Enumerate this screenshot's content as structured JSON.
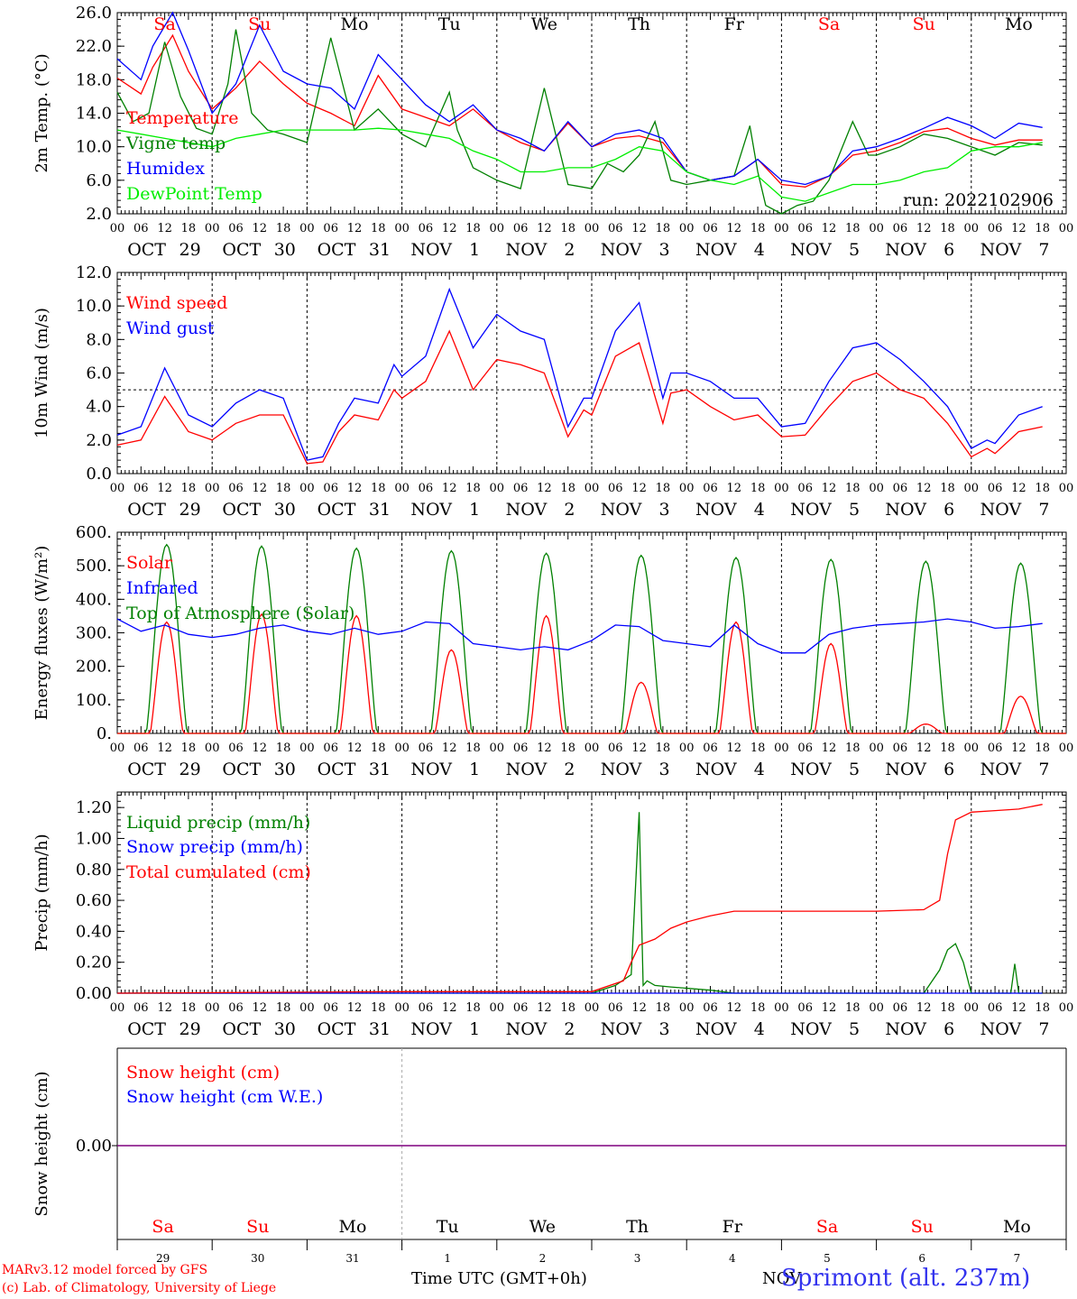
{
  "footer": {
    "model_line1": "MARv3.12 model forced by GFS",
    "model_line2": "(c) Lab. of Climatology, University of Liege",
    "time_axis": "Time UTC (GMT+0h)",
    "month": "NOV",
    "station": "Sprimont (alt. 237m)"
  },
  "colors": {
    "red": "#ff0000",
    "green": "#008000",
    "blue": "#0000ff",
    "lightgreen": "#00ee00",
    "purple": "#7f007f",
    "weekend": "#ff0000",
    "station": "#3333ee"
  },
  "days": {
    "weekday_labels": [
      "Sa",
      "Su",
      "Mo",
      "Tu",
      "We",
      "Th",
      "Fr",
      "Sa",
      "Su",
      "Mo"
    ],
    "weekend_flags": [
      true,
      true,
      false,
      false,
      false,
      false,
      false,
      true,
      true,
      false
    ],
    "date_labels": [
      [
        "OCT",
        "29"
      ],
      [
        "OCT",
        "30"
      ],
      [
        "OCT",
        "31"
      ],
      [
        "NOV",
        "1"
      ],
      [
        "NOV",
        "2"
      ],
      [
        "NOV",
        "3"
      ],
      [
        "NOV",
        "4"
      ],
      [
        "NOV",
        "5"
      ],
      [
        "NOV",
        "6"
      ],
      [
        "NOV",
        "7"
      ]
    ],
    "day_numbers": [
      "29",
      "30",
      "31",
      "1",
      "2",
      "3",
      "4",
      "5",
      "6",
      "7"
    ],
    "hour_labels": [
      "00",
      "06",
      "12",
      "18"
    ],
    "final_hour_label": "00"
  },
  "chart_data": [
    {
      "type": "line",
      "ylabel": "2m Temp. (°C)",
      "ylim": [
        2,
        26
      ],
      "yticks": [
        "2.0",
        "6.0",
        "10.0",
        "14.0",
        "18.0",
        "22.0",
        "26.0"
      ],
      "x_unit": "hours since 29 Oct 00 UTC",
      "annotation": "run: 2022102906",
      "legend": [
        "Temperature",
        "Vigne temp",
        "Humidex",
        "DewPoint Temp"
      ],
      "series": [
        {
          "name": "Temperature",
          "color": "red",
          "x": [
            0,
            6,
            9,
            14,
            18,
            24,
            30,
            36,
            42,
            48,
            54,
            60,
            66,
            72,
            78,
            84,
            90,
            96,
            102,
            108,
            114,
            120,
            126,
            132,
            138,
            144,
            150,
            156,
            162,
            168,
            174,
            180,
            186,
            192,
            198,
            204,
            210,
            216,
            222,
            228,
            234
          ],
          "values": [
            18.2,
            16.3,
            19.5,
            23.3,
            19.0,
            14.5,
            17.0,
            20.2,
            17.5,
            15.2,
            14.0,
            12.5,
            18.5,
            14.5,
            13.5,
            12.5,
            14.5,
            12.0,
            10.5,
            9.5,
            12.8,
            10.0,
            11.0,
            11.3,
            10.5,
            7.0,
            6.0,
            6.5,
            8.5,
            5.5,
            5.2,
            6.5,
            9.0,
            9.5,
            10.5,
            11.8,
            12.2,
            11.0,
            10.2,
            10.8,
            10.8
          ]
        },
        {
          "name": "Vigne temp",
          "color": "green",
          "x": [
            0,
            4,
            8,
            12,
            16,
            20,
            24,
            28,
            30,
            34,
            38,
            42,
            48,
            54,
            60,
            66,
            72,
            78,
            84,
            86,
            90,
            96,
            102,
            108,
            114,
            120,
            124,
            128,
            132,
            136,
            140,
            144,
            150,
            156,
            160,
            162,
            164,
            168,
            172,
            176,
            180,
            186,
            190,
            192,
            198,
            204,
            210,
            216,
            222,
            228,
            234
          ],
          "values": [
            16.5,
            13.0,
            14.0,
            22.5,
            16.0,
            12.2,
            11.5,
            17.5,
            24.0,
            14.0,
            12.0,
            11.5,
            10.5,
            23.0,
            12.0,
            14.5,
            11.5,
            10.0,
            16.5,
            12.0,
            7.5,
            6.0,
            5.0,
            17.0,
            5.5,
            5.0,
            8.0,
            7.0,
            9.0,
            13.0,
            6.0,
            5.5,
            6.0,
            6.5,
            12.5,
            7.0,
            3.0,
            2.0,
            3.0,
            3.5,
            6.0,
            13.0,
            9.0,
            9.0,
            10.0,
            11.5,
            11.0,
            10.0,
            9.0,
            10.5,
            10.2
          ]
        },
        {
          "name": "Humidex",
          "color": "blue",
          "x": [
            0,
            6,
            9,
            14,
            18,
            24,
            30,
            36,
            42,
            48,
            54,
            60,
            66,
            72,
            78,
            84,
            90,
            96,
            102,
            108,
            114,
            120,
            126,
            132,
            138,
            144,
            150,
            156,
            162,
            168,
            174,
            180,
            186,
            192,
            198,
            204,
            210,
            216,
            222,
            228,
            234
          ],
          "values": [
            20.5,
            18.0,
            22.0,
            26.0,
            21.5,
            14.0,
            17.5,
            24.5,
            19.0,
            17.5,
            17.0,
            14.5,
            21.0,
            18.0,
            15.0,
            13.0,
            15.0,
            12.0,
            11.0,
            9.5,
            13.0,
            10.0,
            11.5,
            12.0,
            11.0,
            7.0,
            6.0,
            6.5,
            8.5,
            6.0,
            5.5,
            6.5,
            9.5,
            10.0,
            11.0,
            12.2,
            13.5,
            12.5,
            11.0,
            12.8,
            12.3
          ]
        },
        {
          "name": "DewPoint Temp",
          "color": "lightgreen",
          "x": [
            0,
            6,
            12,
            18,
            24,
            30,
            36,
            42,
            48,
            54,
            60,
            66,
            72,
            78,
            84,
            90,
            96,
            102,
            108,
            114,
            120,
            126,
            132,
            138,
            144,
            150,
            156,
            162,
            168,
            174,
            180,
            186,
            192,
            198,
            204,
            210,
            216,
            222,
            228,
            234
          ],
          "values": [
            12.0,
            11.5,
            11.0,
            10.5,
            10.0,
            11.0,
            11.5,
            12.0,
            12.0,
            12.0,
            12.0,
            12.2,
            12.0,
            11.5,
            11.0,
            9.5,
            8.5,
            7.0,
            7.0,
            7.5,
            7.5,
            8.5,
            10.0,
            9.5,
            7.0,
            6.0,
            5.5,
            6.5,
            4.0,
            3.5,
            4.5,
            5.5,
            5.5,
            6.0,
            7.0,
            7.5,
            9.5,
            10.0,
            10.0,
            10.5
          ]
        }
      ]
    },
    {
      "type": "line",
      "ylabel": "10m Wind (m/s)",
      "ylim": [
        0,
        12
      ],
      "yticks": [
        "0.0",
        "2.0",
        "4.0",
        "6.0",
        "8.0",
        "10.0",
        "12.0"
      ],
      "reference_line": 5.0,
      "legend": [
        "Wind speed",
        "Wind gust"
      ],
      "series": [
        {
          "name": "Wind speed",
          "color": "red",
          "x": [
            0,
            6,
            12,
            18,
            24,
            30,
            36,
            42,
            48,
            52,
            56,
            60,
            66,
            70,
            72,
            78,
            84,
            90,
            96,
            102,
            108,
            114,
            118,
            120,
            126,
            132,
            138,
            140,
            144,
            150,
            156,
            162,
            168,
            174,
            180,
            186,
            192,
            198,
            204,
            210,
            216,
            220,
            222,
            228,
            234
          ],
          "values": [
            1.7,
            2.0,
            4.6,
            2.5,
            2.0,
            3.0,
            3.5,
            3.5,
            0.6,
            0.7,
            2.5,
            3.5,
            3.2,
            5.0,
            4.5,
            5.5,
            8.5,
            5.0,
            6.8,
            6.5,
            6.0,
            2.2,
            3.8,
            3.5,
            7.0,
            7.8,
            3.0,
            4.8,
            5.0,
            4.0,
            3.2,
            3.5,
            2.2,
            2.3,
            4.0,
            5.5,
            6.0,
            5.0,
            4.5,
            3.0,
            1.0,
            1.5,
            1.2,
            2.5,
            2.8
          ]
        },
        {
          "name": "Wind gust",
          "color": "blue",
          "x": [
            0,
            6,
            12,
            18,
            24,
            30,
            36,
            42,
            48,
            52,
            56,
            60,
            66,
            70,
            72,
            78,
            84,
            90,
            96,
            102,
            108,
            114,
            118,
            120,
            126,
            132,
            138,
            140,
            144,
            150,
            156,
            162,
            168,
            174,
            180,
            186,
            192,
            198,
            204,
            210,
            216,
            220,
            222,
            228,
            234
          ],
          "values": [
            2.3,
            2.8,
            6.3,
            3.5,
            2.8,
            4.2,
            5.0,
            4.5,
            0.8,
            1.0,
            3.0,
            4.5,
            4.2,
            6.5,
            5.8,
            7.0,
            11.0,
            7.5,
            9.5,
            8.5,
            8.0,
            2.8,
            4.5,
            4.5,
            8.5,
            10.2,
            4.5,
            6.0,
            6.0,
            5.5,
            4.5,
            4.5,
            2.8,
            3.0,
            5.5,
            7.5,
            7.8,
            6.8,
            5.5,
            4.0,
            1.5,
            2.0,
            1.8,
            3.5,
            4.0
          ]
        }
      ]
    },
    {
      "type": "line",
      "ylabel": "Energy fluxes (W/m²)",
      "ylim": [
        0,
        650
      ],
      "yticks": [
        "0.",
        "100.",
        "200.",
        "300.",
        "400.",
        "500.",
        "600."
      ],
      "legend": [
        "Solar",
        "Infrared",
        "Top of Atmosphere (Solar)"
      ],
      "series": [
        {
          "name": "Solar",
          "color": "red",
          "day_peaks": [
            360,
            385,
            380,
            270,
            380,
            165,
            360,
            290,
            30,
            120
          ]
        },
        {
          "name": "Infrared",
          "color": "blue",
          "x": [
            0,
            6,
            12,
            18,
            24,
            30,
            36,
            42,
            48,
            54,
            60,
            66,
            72,
            78,
            84,
            90,
            96,
            102,
            108,
            114,
            120,
            126,
            132,
            138,
            144,
            150,
            156,
            162,
            168,
            174,
            180,
            186,
            192,
            198,
            204,
            210,
            216,
            222,
            228,
            234
          ],
          "values": [
            370,
            330,
            350,
            320,
            310,
            320,
            340,
            350,
            330,
            320,
            340,
            320,
            330,
            360,
            355,
            290,
            280,
            270,
            280,
            270,
            300,
            350,
            345,
            300,
            290,
            280,
            350,
            290,
            260,
            260,
            320,
            340,
            350,
            355,
            360,
            370,
            360,
            340,
            345,
            355
          ]
        },
        {
          "name": "Top of Atmosphere (Solar)",
          "color": "green",
          "day_peaks": [
            610,
            605,
            598,
            590,
            582,
            575,
            568,
            562,
            556,
            550
          ]
        }
      ]
    },
    {
      "type": "line",
      "ylabel": "Precip (mm/h)",
      "ylim": [
        0,
        1.3
      ],
      "yticks": [
        "0.00",
        "0.20",
        "0.40",
        "0.60",
        "0.80",
        "1.00",
        "1.20"
      ],
      "legend": [
        "Liquid precip (mm/h)",
        "Snow precip (mm/h)",
        "Total cumulated (cm)"
      ],
      "series": [
        {
          "name": "Liquid precip (mm/h)",
          "color": "green",
          "x": [
            0,
            120,
            126,
            130,
            132,
            133,
            134,
            136,
            140,
            150,
            156,
            180,
            195,
            204,
            208,
            210,
            212,
            214,
            216,
            222,
            226,
            227,
            228,
            234
          ],
          "values": [
            0,
            0,
            0.05,
            0.12,
            1.17,
            0.05,
            0.08,
            0.05,
            0.04,
            0.02,
            0,
            0,
            0,
            0,
            0.15,
            0.28,
            0.32,
            0.2,
            0,
            0,
            0,
            0.19,
            0,
            0
          ]
        },
        {
          "name": "Snow precip (mm/h)",
          "color": "blue",
          "x": [
            0,
            234
          ],
          "values": [
            0,
            0
          ]
        },
        {
          "name": "Total cumulated (cm)",
          "color": "red",
          "x": [
            0,
            72,
            120,
            128,
            130,
            132,
            136,
            140,
            144,
            150,
            156,
            162,
            168,
            180,
            192,
            204,
            208,
            210,
            212,
            216,
            222,
            228,
            234
          ],
          "values": [
            0,
            0.01,
            0.01,
            0.08,
            0.2,
            0.31,
            0.35,
            0.42,
            0.46,
            0.5,
            0.53,
            0.53,
            0.53,
            0.53,
            0.53,
            0.54,
            0.6,
            0.9,
            1.12,
            1.17,
            1.18,
            1.19,
            1.22
          ]
        }
      ]
    },
    {
      "type": "line",
      "ylabel": "Snow height (cm)",
      "yticks": [
        "0.00"
      ],
      "legend": [
        "Snow height (cm)",
        "Snow height (cm W.E.)"
      ],
      "series": [
        {
          "name": "Snow height (cm)",
          "color": "red",
          "x": [
            0,
            234
          ],
          "values": [
            0,
            0
          ]
        },
        {
          "name": "Snow height (cm W.E.)",
          "color": "blue",
          "x": [
            0,
            234
          ],
          "values": [
            0,
            0
          ]
        }
      ]
    }
  ]
}
